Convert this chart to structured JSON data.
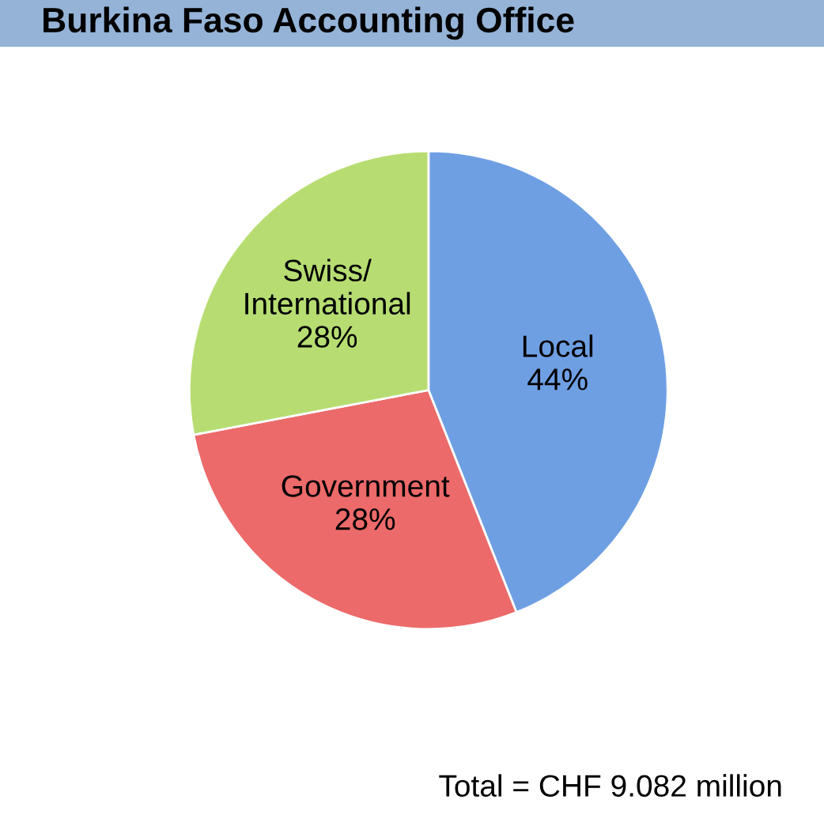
{
  "chart_data": {
    "type": "pie",
    "title": "Burkina Faso Accounting Office",
    "categories": [
      "Local",
      "Government",
      "Swiss/\nInternational"
    ],
    "values": [
      44,
      28,
      28
    ],
    "colors": [
      "#6f9fe3",
      "#ec6a6a",
      "#b7dd72"
    ],
    "value_labels": [
      "44%",
      "28%",
      "28%"
    ],
    "annotations": [
      "Total = CHF 9.082 million"
    ]
  }
}
